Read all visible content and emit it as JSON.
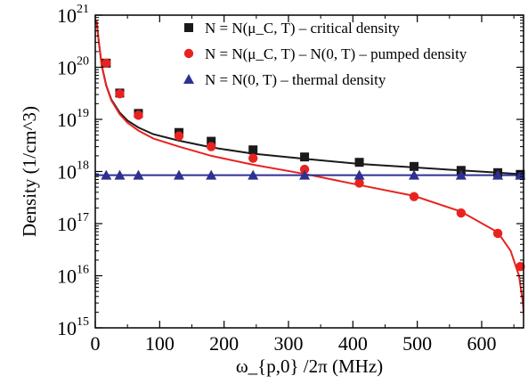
{
  "chart_data": {
    "type": "scatter",
    "title": "",
    "xlabel": "ω_{p,0} /2π  (MHz)",
    "ylabel": "Density  (1/cm^3)",
    "x_tick_labels": [
      "0",
      "100",
      "200",
      "300",
      "400",
      "500",
      "600"
    ],
    "y_tick_labels": [
      "10^15",
      "10^16",
      "10^17",
      "10^18",
      "10^19",
      "10^20",
      "10^21"
    ],
    "xlim": [
      0,
      665
    ],
    "ylim": [
      1000000000000000.0,
      1e+21
    ],
    "yscale": "log",
    "grid": false,
    "legend_position": "top-right",
    "series": [
      {
        "name": "N = N(μ_C, T) – critical density",
        "marker": "square",
        "color": "#1a1a1a",
        "x": [
          17,
          38,
          67,
          130,
          180,
          245,
          325,
          410,
          495,
          568,
          625,
          660
        ],
        "y": [
          1.2e+20,
          3.2e+19,
          1.3e+19,
          5.6e+18,
          3.8e+18,
          2.6e+18,
          1.9e+18,
          1.5e+18,
          1.25e+18,
          1.05e+18,
          9.5e+17,
          8.8e+17
        ]
      },
      {
        "name": "N = N(μ_C, T) – N(0, T) – pumped density",
        "marker": "circle",
        "color": "#e8231f",
        "x": [
          17,
          38,
          67,
          130,
          180,
          245,
          325,
          410,
          495,
          568,
          625,
          660
        ],
        "y": [
          1.2e+20,
          3.1e+19,
          1.2e+19,
          4.8e+18,
          3e+18,
          1.8e+18,
          1.1e+18,
          6e+17,
          3.3e+17,
          1.6e+17,
          6.5e+16,
          1.5e+16
        ]
      },
      {
        "name": "N = N(0, T) – thermal density",
        "marker": "triangle",
        "color": "#2e3192",
        "x": [
          17,
          38,
          67,
          130,
          180,
          245,
          325,
          410,
          495,
          568,
          625,
          660
        ],
        "y": [
          8.5e+17,
          8.5e+17,
          8.5e+17,
          8.5e+17,
          8.5e+17,
          8.5e+17,
          8.5e+17,
          8.5e+17,
          8.5e+17,
          8.5e+17,
          8.5e+17,
          8.5e+17
        ]
      }
    ],
    "fit_curves": [
      {
        "color": "#1a1a1a",
        "x": [
          2,
          5,
          10,
          17,
          25,
          38,
          50,
          67,
          90,
          130,
          180,
          245,
          325,
          410,
          495,
          568,
          625,
          665
        ],
        "y": [
          8e+20,
          3.5e+20,
          1.1e+20,
          4.5e+19,
          2.4e+19,
          1.35e+19,
          9.5e+18,
          7e+18,
          5.2e+18,
          3.9e+18,
          2.9e+18,
          2.2e+18,
          1.75e+18,
          1.4e+18,
          1.2e+18,
          1.05e+18,
          9.5e+17,
          8.8e+17
        ]
      },
      {
        "color": "#e8231f",
        "x": [
          2,
          5,
          10,
          17,
          25,
          38,
          50,
          67,
          90,
          130,
          180,
          245,
          325,
          410,
          495,
          568,
          625,
          645,
          658,
          664,
          667
        ],
        "y": [
          8e+20,
          3.5e+20,
          1.1e+20,
          4.4e+19,
          2.3e+19,
          1.25e+19,
          8.6e+18,
          6.1e+18,
          4.3e+18,
          3e+18,
          2e+18,
          1.35e+18,
          9e+17,
          5.5e+17,
          3.4e+17,
          1.7e+17,
          6.8e+16,
          3e+16,
          1e+16,
          3000000000000000.0,
          1000000000000000.0
        ]
      },
      {
        "color": "#2e3192",
        "x": [
          0,
          665
        ],
        "y": [
          8.5e+17,
          8.5e+17
        ]
      }
    ]
  }
}
